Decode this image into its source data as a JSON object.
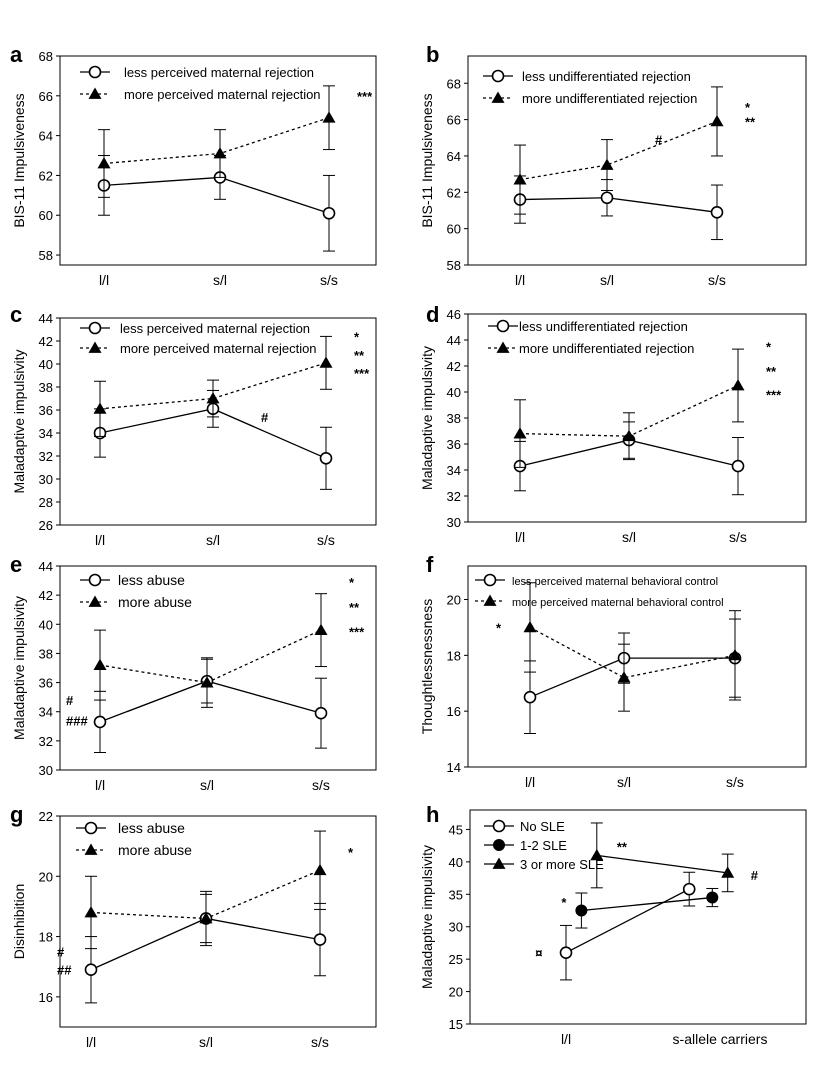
{
  "colors": {
    "ink": "#000000",
    "background": "#ffffff",
    "grid": "none"
  },
  "chart_data": [
    {
      "panel": "a",
      "type": "line",
      "ylabel": "BIS-11 Impulsiveness",
      "categories": [
        "l/l",
        "s/l",
        "s/s"
      ],
      "ylim": [
        57.5,
        68
      ],
      "yticks": [
        58,
        60,
        62,
        64,
        66,
        68
      ],
      "legend_position": "top-left",
      "grid": false,
      "series": [
        {
          "name": "less perceived maternal rejection",
          "marker": "open-circle",
          "line": "solid",
          "values": [
            61.5,
            61.9,
            60.1
          ],
          "err": [
            1.5,
            1.1,
            1.9
          ]
        },
        {
          "name": "more perceived maternal rejection",
          "marker": "filled-triangle",
          "line": "dashed",
          "values": [
            62.6,
            63.1,
            64.9
          ],
          "err": [
            1.7,
            1.2,
            1.6
          ]
        }
      ],
      "annotations": [
        {
          "category": 2,
          "y": 66.0,
          "text": "***"
        }
      ]
    },
    {
      "panel": "b",
      "type": "line",
      "ylabel": "BIS-11 Impulsiveness",
      "categories": [
        "l/l",
        "s/l",
        "s/s"
      ],
      "ylim": [
        58,
        69.5
      ],
      "yticks": [
        58,
        60,
        62,
        64,
        66,
        68
      ],
      "legend_position": "top-left",
      "grid": false,
      "series": [
        {
          "name": "less undifferentiated rejection",
          "marker": "open-circle",
          "line": "solid",
          "values": [
            61.6,
            61.7,
            60.9
          ],
          "err": [
            1.3,
            1.0,
            1.5
          ]
        },
        {
          "name": "more undifferentiated rejection",
          "marker": "filled-triangle",
          "line": "dashed",
          "values": [
            62.7,
            63.5,
            65.9
          ],
          "err": [
            1.9,
            1.4,
            1.9
          ]
        }
      ],
      "annotations": [
        {
          "category": 1,
          "y": 64.9,
          "text": "#"
        },
        {
          "category": 2,
          "y": 66.7,
          "text": "*"
        },
        {
          "category": 2,
          "y": 65.9,
          "text": "**"
        }
      ]
    },
    {
      "panel": "c",
      "type": "line",
      "ylabel": "Maladaptive impulsivity",
      "categories": [
        "l/l",
        "s/l",
        "s/s"
      ],
      "ylim": [
        26,
        44
      ],
      "yticks": [
        26,
        28,
        30,
        32,
        34,
        36,
        38,
        40,
        42,
        44
      ],
      "legend_position": "top-left",
      "grid": false,
      "series": [
        {
          "name": "less perceived maternal rejection",
          "marker": "open-circle",
          "line": "solid",
          "values": [
            34.0,
            36.1,
            31.8
          ],
          "err": [
            2.1,
            1.6,
            2.7
          ]
        },
        {
          "name": "more perceived maternal rejection",
          "marker": "filled-triangle",
          "line": "dashed",
          "values": [
            36.1,
            37.0,
            40.1
          ],
          "err": [
            2.4,
            1.6,
            2.3
          ]
        }
      ],
      "annotations": [
        {
          "category": 1,
          "y": 35.4,
          "text": "#"
        },
        {
          "category": 2,
          "y": 42.4,
          "text": "*"
        },
        {
          "category": 2,
          "y": 40.8,
          "text": "**"
        },
        {
          "category": 2,
          "y": 39.2,
          "text": "***"
        }
      ]
    },
    {
      "panel": "d",
      "type": "line",
      "ylabel": "Maladaptive impulsivity",
      "categories": [
        "l/l",
        "s/l",
        "s/s"
      ],
      "ylim": [
        30,
        46
      ],
      "yticks": [
        30,
        32,
        34,
        36,
        38,
        40,
        42,
        44,
        46
      ],
      "legend_position": "top-left",
      "grid": false,
      "series": [
        {
          "name": "less undifferentiated rejection",
          "marker": "open-circle",
          "line": "solid",
          "values": [
            34.3,
            36.3,
            34.3
          ],
          "err": [
            1.9,
            1.4,
            2.2
          ]
        },
        {
          "name": "more undifferentiated rejection",
          "marker": "filled-triangle",
          "line": "dashed",
          "values": [
            36.8,
            36.6,
            40.5
          ],
          "err": [
            2.6,
            1.8,
            2.8
          ]
        }
      ],
      "annotations": [
        {
          "category": 2,
          "y": 43.5,
          "text": "*"
        },
        {
          "category": 2,
          "y": 41.6,
          "text": "**"
        },
        {
          "category": 2,
          "y": 39.8,
          "text": "***"
        }
      ]
    },
    {
      "panel": "e",
      "type": "line",
      "ylabel": "Maladaptive impulsivity",
      "categories": [
        "l/l",
        "s/l",
        "s/s"
      ],
      "ylim": [
        30,
        44
      ],
      "yticks": [
        30,
        32,
        34,
        36,
        38,
        40,
        42,
        44
      ],
      "legend_position": "top-left",
      "grid": false,
      "series": [
        {
          "name": "less abuse",
          "marker": "open-circle",
          "line": "solid",
          "values": [
            33.3,
            36.1,
            33.9
          ],
          "err": [
            2.1,
            1.5,
            2.4
          ]
        },
        {
          "name": "more abuse",
          "marker": "filled-triangle",
          "line": "dashed",
          "values": [
            37.2,
            36.0,
            39.6
          ],
          "err": [
            2.4,
            1.7,
            2.5
          ]
        }
      ],
      "annotations": [
        {
          "category": 0,
          "y": 34.8,
          "text": "#"
        },
        {
          "category": 0,
          "y": 33.4,
          "text": "###"
        },
        {
          "category": 2,
          "y": 42.9,
          "text": "*"
        },
        {
          "category": 2,
          "y": 41.2,
          "text": "**"
        },
        {
          "category": 2,
          "y": 39.5,
          "text": "***"
        }
      ]
    },
    {
      "panel": "f",
      "type": "line",
      "ylabel": "Thoughtlessnessness",
      "categories": [
        "l/l",
        "s/l",
        "s/s"
      ],
      "ylim": [
        14,
        21.2
      ],
      "yticks": [
        14,
        16,
        18,
        20
      ],
      "legend_position": "top-left",
      "grid": false,
      "series": [
        {
          "name": "less perceived maternal behavioral control",
          "marker": "open-circle",
          "line": "solid",
          "values": [
            16.5,
            17.9,
            17.9
          ],
          "err": [
            1.3,
            0.9,
            1.4
          ]
        },
        {
          "name": "more perceived maternal behavioral control",
          "marker": "filled-triangle",
          "line": "dashed",
          "values": [
            19.0,
            17.2,
            18.0
          ],
          "err": [
            1.6,
            1.2,
            1.6
          ]
        }
      ],
      "annotations": [
        {
          "category": 0,
          "y": 19.0,
          "text": "*"
        }
      ]
    },
    {
      "panel": "g",
      "type": "line",
      "ylabel": "Disinhibition",
      "categories": [
        "l/l",
        "s/l",
        "s/s"
      ],
      "ylim": [
        15,
        22
      ],
      "yticks": [
        16,
        18,
        20,
        22
      ],
      "legend_position": "top-left",
      "grid": false,
      "series": [
        {
          "name": "less abuse",
          "marker": "open-circle",
          "line": "solid",
          "values": [
            16.9,
            18.6,
            17.9
          ],
          "err": [
            1.1,
            0.8,
            1.2
          ]
        },
        {
          "name": "more abuse",
          "marker": "filled-triangle",
          "line": "dashed",
          "values": [
            18.8,
            18.6,
            20.2
          ],
          "err": [
            1.2,
            0.9,
            1.3
          ]
        }
      ],
      "annotations": [
        {
          "category": 0,
          "y": 17.5,
          "text": "#"
        },
        {
          "category": 0,
          "y": 16.9,
          "text": "##"
        },
        {
          "category": 2,
          "y": 20.8,
          "text": "*"
        }
      ]
    },
    {
      "panel": "h",
      "type": "line",
      "ylabel": "Maladaptive impulsivity",
      "categories": [
        "l/l",
        "s-allele carriers"
      ],
      "ylim": [
        15,
        48
      ],
      "yticks": [
        15,
        20,
        25,
        30,
        35,
        40,
        45
      ],
      "legend_position": "top-left",
      "grid": false,
      "series": [
        {
          "name": "No SLE",
          "marker": "open-circle",
          "line": "solid",
          "x": [
            0.0,
            0.8
          ],
          "values": [
            26.0,
            35.8
          ],
          "err": [
            4.2,
            2.6
          ]
        },
        {
          "name": "1-2 SLE",
          "marker": "filled-circle",
          "line": "solid",
          "x": [
            0.1,
            0.95
          ],
          "values": [
            32.5,
            34.5
          ],
          "err": [
            2.7,
            1.4
          ]
        },
        {
          "name": "3 or more SLE",
          "marker": "filled-triangle",
          "line": "solid",
          "x": [
            0.2,
            1.05
          ],
          "values": [
            41.0,
            38.3
          ],
          "err": [
            5.0,
            2.9
          ]
        }
      ],
      "annotations": [
        {
          "x": -0.2,
          "y": 26.0,
          "text": "¤"
        },
        {
          "x": -0.03,
          "y": 33.8,
          "text": "*"
        },
        {
          "x": 0.33,
          "y": 42.4,
          "text": "**"
        },
        {
          "x": 1.2,
          "y": 38.0,
          "text": "#"
        }
      ]
    }
  ]
}
